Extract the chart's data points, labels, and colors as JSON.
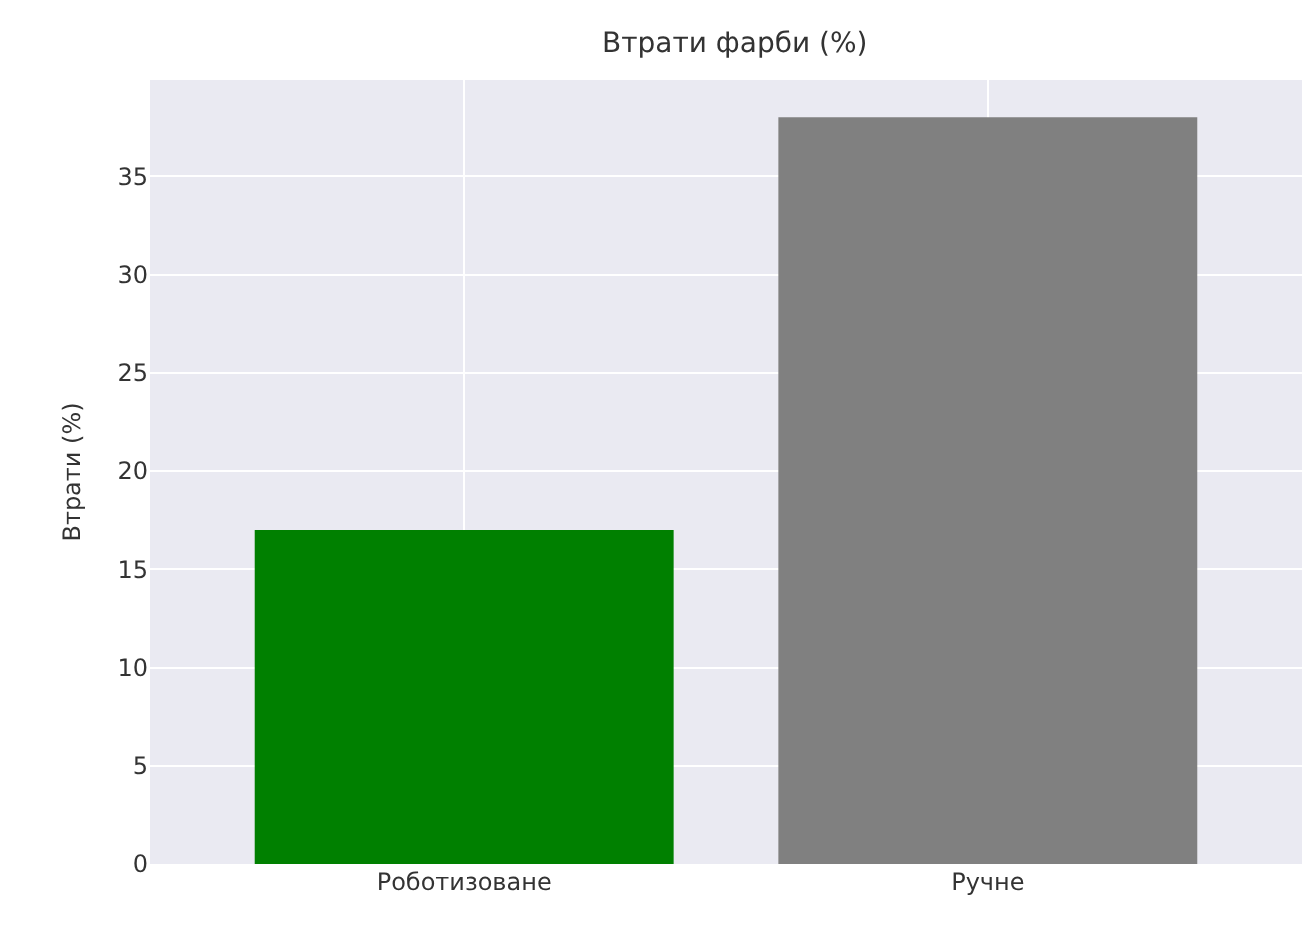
{
  "chart_data": {
    "type": "bar",
    "title": "Втрати фарби (%)",
    "ylabel": "Втрати (%)",
    "categories": [
      "Роботизоване",
      "Ручне"
    ],
    "values": [
      17,
      38
    ],
    "colors": [
      "#008000",
      "#808080"
    ],
    "ylim": [
      0,
      39.9
    ],
    "yticks": [
      0,
      5,
      10,
      15,
      20,
      25,
      30,
      35
    ],
    "grid": true
  }
}
